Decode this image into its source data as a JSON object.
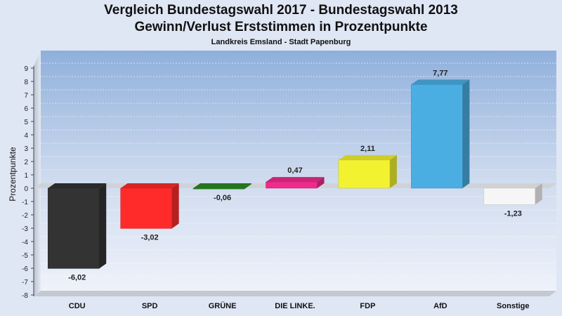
{
  "title_line1": "Vergleich Bundestagswahl 2017 - Bundestagswahl 2013",
  "title_line2": "Gewinn/Verlust Erststimmen in Prozentpunkte",
  "subtitle": "Landkreis Emsland - Stadt Papenburg",
  "chart_data": {
    "type": "bar",
    "title": "Vergleich Bundestagswahl 2017 - Bundestagswahl 2013 / Gewinn/Verlust Erststimmen in Prozentpunkte",
    "subtitle": "Landkreis Emsland - Stadt Papenburg",
    "ylabel": "Prozentpunkte",
    "xlabel": "",
    "ylim": [
      -8,
      9
    ],
    "yticks": [
      "9",
      "8",
      "7",
      "6",
      "5",
      "4",
      "3",
      "2",
      "1",
      "0",
      "-1",
      "-2",
      "-3",
      "-4",
      "-5",
      "-6",
      "-7",
      "-8"
    ],
    "grid": true,
    "categories": [
      "CDU",
      "SPD",
      "GRÜNE",
      "DIE LINKE.",
      "FDP",
      "AfD",
      "Sonstige"
    ],
    "values": [
      -6.02,
      -3.02,
      -0.06,
      0.47,
      2.11,
      7.77,
      -1.23
    ],
    "value_labels": [
      "-6,02",
      "-3,02",
      "-0,06",
      "0,47",
      "2,11",
      "7,77",
      "-1,23"
    ],
    "colors": [
      "#333333",
      "#ff2b2b",
      "#2a8a22",
      "#ee2b8b",
      "#f2f230",
      "#4aaee3",
      "#f6f6f6"
    ]
  }
}
